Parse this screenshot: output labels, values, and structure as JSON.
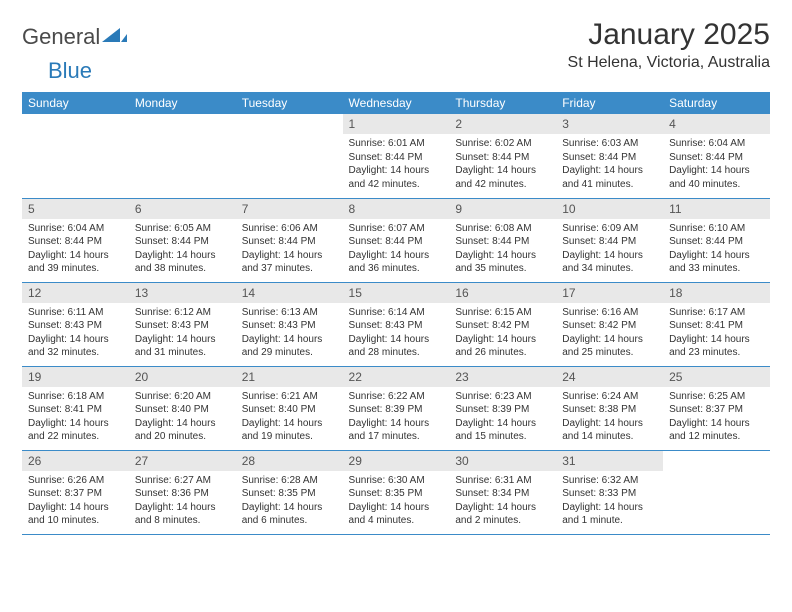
{
  "brand": {
    "part1": "General",
    "part2": "Blue"
  },
  "title": "January 2025",
  "location": "St Helena, Victoria, Australia",
  "colors": {
    "header_bg": "#3b8bc8",
    "header_text": "#ffffff",
    "daynum_bg": "#e8e8e8",
    "border": "#3b8bc8",
    "logo_gray": "#4a4a4a",
    "logo_blue": "#2a7ab8"
  },
  "weekdays": [
    "Sunday",
    "Monday",
    "Tuesday",
    "Wednesday",
    "Thursday",
    "Friday",
    "Saturday"
  ],
  "first_weekday_index": 3,
  "days": [
    {
      "n": "1",
      "sunrise": "6:01 AM",
      "sunset": "8:44 PM",
      "daylight": "14 hours and 42 minutes."
    },
    {
      "n": "2",
      "sunrise": "6:02 AM",
      "sunset": "8:44 PM",
      "daylight": "14 hours and 42 minutes."
    },
    {
      "n": "3",
      "sunrise": "6:03 AM",
      "sunset": "8:44 PM",
      "daylight": "14 hours and 41 minutes."
    },
    {
      "n": "4",
      "sunrise": "6:04 AM",
      "sunset": "8:44 PM",
      "daylight": "14 hours and 40 minutes."
    },
    {
      "n": "5",
      "sunrise": "6:04 AM",
      "sunset": "8:44 PM",
      "daylight": "14 hours and 39 minutes."
    },
    {
      "n": "6",
      "sunrise": "6:05 AM",
      "sunset": "8:44 PM",
      "daylight": "14 hours and 38 minutes."
    },
    {
      "n": "7",
      "sunrise": "6:06 AM",
      "sunset": "8:44 PM",
      "daylight": "14 hours and 37 minutes."
    },
    {
      "n": "8",
      "sunrise": "6:07 AM",
      "sunset": "8:44 PM",
      "daylight": "14 hours and 36 minutes."
    },
    {
      "n": "9",
      "sunrise": "6:08 AM",
      "sunset": "8:44 PM",
      "daylight": "14 hours and 35 minutes."
    },
    {
      "n": "10",
      "sunrise": "6:09 AM",
      "sunset": "8:44 PM",
      "daylight": "14 hours and 34 minutes."
    },
    {
      "n": "11",
      "sunrise": "6:10 AM",
      "sunset": "8:44 PM",
      "daylight": "14 hours and 33 minutes."
    },
    {
      "n": "12",
      "sunrise": "6:11 AM",
      "sunset": "8:43 PM",
      "daylight": "14 hours and 32 minutes."
    },
    {
      "n": "13",
      "sunrise": "6:12 AM",
      "sunset": "8:43 PM",
      "daylight": "14 hours and 31 minutes."
    },
    {
      "n": "14",
      "sunrise": "6:13 AM",
      "sunset": "8:43 PM",
      "daylight": "14 hours and 29 minutes."
    },
    {
      "n": "15",
      "sunrise": "6:14 AM",
      "sunset": "8:43 PM",
      "daylight": "14 hours and 28 minutes."
    },
    {
      "n": "16",
      "sunrise": "6:15 AM",
      "sunset": "8:42 PM",
      "daylight": "14 hours and 26 minutes."
    },
    {
      "n": "17",
      "sunrise": "6:16 AM",
      "sunset": "8:42 PM",
      "daylight": "14 hours and 25 minutes."
    },
    {
      "n": "18",
      "sunrise": "6:17 AM",
      "sunset": "8:41 PM",
      "daylight": "14 hours and 23 minutes."
    },
    {
      "n": "19",
      "sunrise": "6:18 AM",
      "sunset": "8:41 PM",
      "daylight": "14 hours and 22 minutes."
    },
    {
      "n": "20",
      "sunrise": "6:20 AM",
      "sunset": "8:40 PM",
      "daylight": "14 hours and 20 minutes."
    },
    {
      "n": "21",
      "sunrise": "6:21 AM",
      "sunset": "8:40 PM",
      "daylight": "14 hours and 19 minutes."
    },
    {
      "n": "22",
      "sunrise": "6:22 AM",
      "sunset": "8:39 PM",
      "daylight": "14 hours and 17 minutes."
    },
    {
      "n": "23",
      "sunrise": "6:23 AM",
      "sunset": "8:39 PM",
      "daylight": "14 hours and 15 minutes."
    },
    {
      "n": "24",
      "sunrise": "6:24 AM",
      "sunset": "8:38 PM",
      "daylight": "14 hours and 14 minutes."
    },
    {
      "n": "25",
      "sunrise": "6:25 AM",
      "sunset": "8:37 PM",
      "daylight": "14 hours and 12 minutes."
    },
    {
      "n": "26",
      "sunrise": "6:26 AM",
      "sunset": "8:37 PM",
      "daylight": "14 hours and 10 minutes."
    },
    {
      "n": "27",
      "sunrise": "6:27 AM",
      "sunset": "8:36 PM",
      "daylight": "14 hours and 8 minutes."
    },
    {
      "n": "28",
      "sunrise": "6:28 AM",
      "sunset": "8:35 PM",
      "daylight": "14 hours and 6 minutes."
    },
    {
      "n": "29",
      "sunrise": "6:30 AM",
      "sunset": "8:35 PM",
      "daylight": "14 hours and 4 minutes."
    },
    {
      "n": "30",
      "sunrise": "6:31 AM",
      "sunset": "8:34 PM",
      "daylight": "14 hours and 2 minutes."
    },
    {
      "n": "31",
      "sunrise": "6:32 AM",
      "sunset": "8:33 PM",
      "daylight": "14 hours and 1 minute."
    }
  ],
  "labels": {
    "sunrise": "Sunrise:",
    "sunset": "Sunset:",
    "daylight": "Daylight:"
  }
}
